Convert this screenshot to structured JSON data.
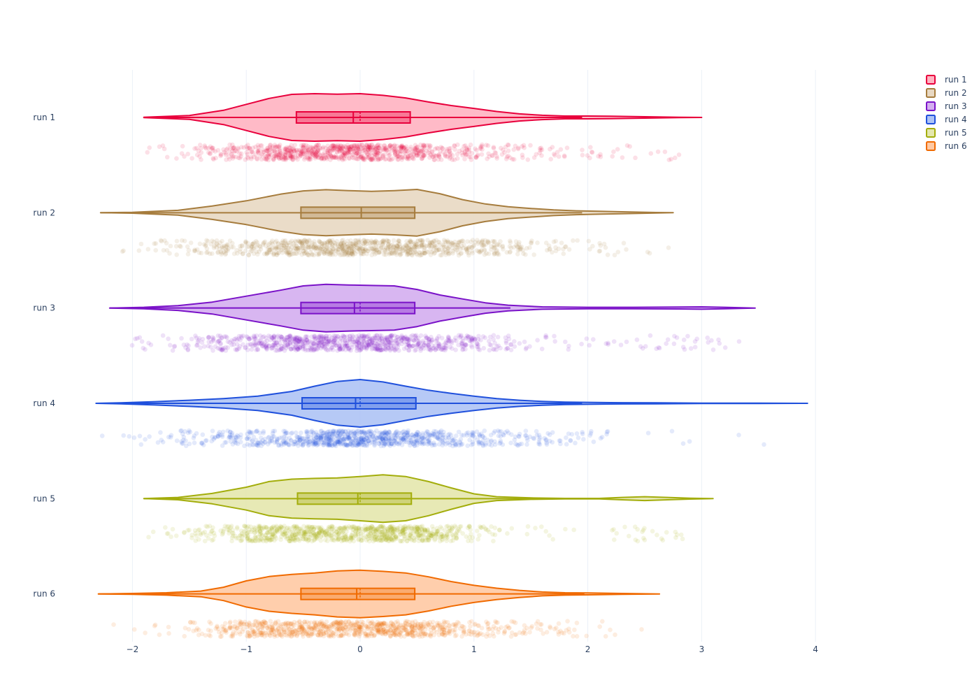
{
  "chart_data": {
    "type": "violin",
    "orientation": "horizontal",
    "categories": [
      "run 1",
      "run 2",
      "run 3",
      "run 4",
      "run 5",
      "run 6"
    ],
    "xlim": [
      -2.5,
      4.65
    ],
    "xticks": [
      -2,
      -1,
      0,
      1,
      2,
      3,
      4
    ],
    "xtick_labels": [
      "−2",
      "−1",
      "0",
      "1",
      "2",
      "3",
      "4"
    ],
    "grid": true,
    "legend_placement": "top-right",
    "show_points": "all",
    "series": [
      {
        "name": "run 1",
        "color": "#e8003c",
        "fill": "#ffb3c1",
        "min": -1.9,
        "q1": -0.56,
        "median": -0.06,
        "mean": 0.0,
        "q3": 0.44,
        "max": 3.0,
        "upper_fence": 1.95,
        "density": [
          [
            -1.9,
            0.01
          ],
          [
            -1.5,
            0.08
          ],
          [
            -1.2,
            0.3
          ],
          [
            -1.0,
            0.55
          ],
          [
            -0.8,
            0.8
          ],
          [
            -0.6,
            0.97
          ],
          [
            -0.4,
            1.0
          ],
          [
            -0.2,
            0.98
          ],
          [
            0.0,
            1.0
          ],
          [
            0.2,
            0.93
          ],
          [
            0.4,
            0.82
          ],
          [
            0.6,
            0.65
          ],
          [
            0.8,
            0.5
          ],
          [
            1.0,
            0.38
          ],
          [
            1.2,
            0.25
          ],
          [
            1.4,
            0.15
          ],
          [
            1.6,
            0.09
          ],
          [
            1.8,
            0.06
          ],
          [
            2.0,
            0.06
          ],
          [
            2.2,
            0.05
          ],
          [
            2.5,
            0.03
          ],
          [
            2.8,
            0.01
          ],
          [
            3.0,
            0.0
          ]
        ]
      },
      {
        "name": "run 2",
        "color": "#a67c3d",
        "fill": "#e8d8c2",
        "min": -2.28,
        "q1": -0.52,
        "median": 0.01,
        "mean": 0.01,
        "q3": 0.48,
        "max": 2.75,
        "upper_fence": 1.95,
        "density": [
          [
            -2.28,
            0.0
          ],
          [
            -2.0,
            0.02
          ],
          [
            -1.6,
            0.1
          ],
          [
            -1.3,
            0.28
          ],
          [
            -1.0,
            0.5
          ],
          [
            -0.7,
            0.78
          ],
          [
            -0.5,
            0.92
          ],
          [
            -0.3,
            0.97
          ],
          [
            -0.1,
            0.93
          ],
          [
            0.1,
            0.9
          ],
          [
            0.3,
            0.93
          ],
          [
            0.5,
            0.98
          ],
          [
            0.7,
            0.8
          ],
          [
            0.9,
            0.55
          ],
          [
            1.1,
            0.37
          ],
          [
            1.3,
            0.25
          ],
          [
            1.5,
            0.18
          ],
          [
            1.7,
            0.12
          ],
          [
            1.9,
            0.08
          ],
          [
            2.1,
            0.06
          ],
          [
            2.3,
            0.04
          ],
          [
            2.6,
            0.01
          ],
          [
            2.75,
            0.0
          ]
        ]
      },
      {
        "name": "run 3",
        "color": "#7a12c8",
        "fill": "#d4aef0",
        "min": -2.2,
        "q1": -0.52,
        "median": -0.05,
        "mean": 0.0,
        "q3": 0.48,
        "max": 3.47,
        "upper_fence": 1.32,
        "density": [
          [
            -2.2,
            0.0
          ],
          [
            -1.9,
            0.03
          ],
          [
            -1.6,
            0.1
          ],
          [
            -1.3,
            0.25
          ],
          [
            -1.0,
            0.5
          ],
          [
            -0.7,
            0.75
          ],
          [
            -0.5,
            0.93
          ],
          [
            -0.3,
            1.0
          ],
          [
            -0.1,
            0.97
          ],
          [
            0.1,
            0.95
          ],
          [
            0.3,
            0.93
          ],
          [
            0.5,
            0.78
          ],
          [
            0.7,
            0.55
          ],
          [
            0.9,
            0.38
          ],
          [
            1.1,
            0.22
          ],
          [
            1.3,
            0.12
          ],
          [
            1.6,
            0.05
          ],
          [
            2.0,
            0.03
          ],
          [
            2.4,
            0.03
          ],
          [
            2.8,
            0.04
          ],
          [
            3.0,
            0.05
          ],
          [
            3.2,
            0.03
          ],
          [
            3.47,
            0.0
          ]
        ]
      },
      {
        "name": "run 4",
        "color": "#1f50dc",
        "fill": "#aec3f5",
        "min": -2.32,
        "q1": -0.51,
        "median": -0.04,
        "mean": 0.0,
        "q3": 0.49,
        "max": 3.93,
        "upper_fence": 1.95,
        "density": [
          [
            -2.32,
            0.0
          ],
          [
            -2.1,
            0.02
          ],
          [
            -1.8,
            0.07
          ],
          [
            -1.5,
            0.13
          ],
          [
            -1.2,
            0.2
          ],
          [
            -0.9,
            0.3
          ],
          [
            -0.6,
            0.5
          ],
          [
            -0.4,
            0.72
          ],
          [
            -0.2,
            0.92
          ],
          [
            0.0,
            1.0
          ],
          [
            0.2,
            0.9
          ],
          [
            0.4,
            0.72
          ],
          [
            0.6,
            0.55
          ],
          [
            0.8,
            0.42
          ],
          [
            1.0,
            0.3
          ],
          [
            1.2,
            0.2
          ],
          [
            1.4,
            0.13
          ],
          [
            1.6,
            0.08
          ],
          [
            1.8,
            0.05
          ],
          [
            2.2,
            0.03
          ],
          [
            2.6,
            0.02
          ],
          [
            3.0,
            0.01
          ],
          [
            3.5,
            0.005
          ],
          [
            3.93,
            0.0
          ]
        ]
      },
      {
        "name": "run 5",
        "color": "#a3ad0b",
        "fill": "#e4e7ad",
        "min": -1.9,
        "q1": -0.55,
        "median": -0.02,
        "mean": 0.0,
        "q3": 0.45,
        "max": 3.1,
        "upper_fence": 1.95,
        "density": [
          [
            -1.9,
            0.0
          ],
          [
            -1.6,
            0.05
          ],
          [
            -1.3,
            0.22
          ],
          [
            -1.0,
            0.48
          ],
          [
            -0.8,
            0.72
          ],
          [
            -0.6,
            0.82
          ],
          [
            -0.4,
            0.85
          ],
          [
            -0.2,
            0.87
          ],
          [
            0.0,
            0.93
          ],
          [
            0.2,
            1.0
          ],
          [
            0.4,
            0.93
          ],
          [
            0.6,
            0.72
          ],
          [
            0.8,
            0.45
          ],
          [
            1.0,
            0.2
          ],
          [
            1.2,
            0.08
          ],
          [
            1.5,
            0.03
          ],
          [
            1.8,
            0.01
          ],
          [
            2.1,
            0.01
          ],
          [
            2.3,
            0.05
          ],
          [
            2.5,
            0.08
          ],
          [
            2.7,
            0.05
          ],
          [
            2.9,
            0.02
          ],
          [
            3.1,
            0.0
          ]
        ]
      },
      {
        "name": "run 6",
        "color": "#f06a00",
        "fill": "#ffc9a3",
        "min": -2.3,
        "q1": -0.52,
        "median": -0.03,
        "mean": 0.0,
        "q3": 0.48,
        "max": 2.63,
        "upper_fence": 1.97,
        "density": [
          [
            -2.3,
            0.0
          ],
          [
            -2.0,
            0.02
          ],
          [
            -1.7,
            0.05
          ],
          [
            -1.4,
            0.12
          ],
          [
            -1.2,
            0.28
          ],
          [
            -1.0,
            0.55
          ],
          [
            -0.8,
            0.73
          ],
          [
            -0.6,
            0.82
          ],
          [
            -0.4,
            0.88
          ],
          [
            -0.2,
            0.97
          ],
          [
            0.0,
            1.0
          ],
          [
            0.2,
            0.95
          ],
          [
            0.4,
            0.88
          ],
          [
            0.6,
            0.72
          ],
          [
            0.8,
            0.52
          ],
          [
            1.0,
            0.36
          ],
          [
            1.2,
            0.24
          ],
          [
            1.4,
            0.15
          ],
          [
            1.6,
            0.08
          ],
          [
            1.8,
            0.05
          ],
          [
            2.0,
            0.04
          ],
          [
            2.3,
            0.02
          ],
          [
            2.63,
            0.0
          ]
        ]
      }
    ]
  }
}
